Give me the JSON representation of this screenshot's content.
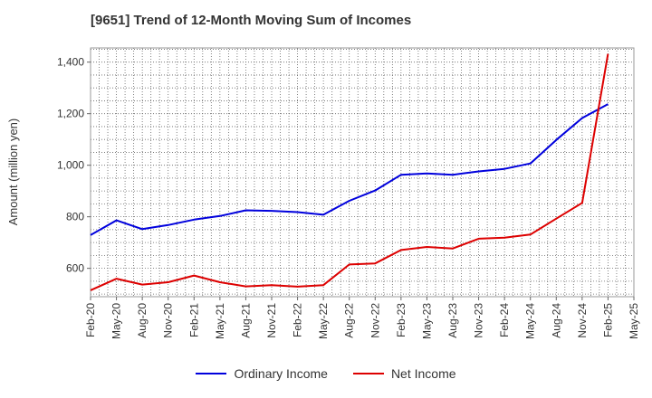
{
  "chart_data": {
    "type": "line",
    "title": "[9651]  Trend of 12-Month Moving Sum of Incomes",
    "xlabel": "",
    "ylabel": "Amount (million yen)",
    "ylim": [
      490,
      1455
    ],
    "yticks": [
      600,
      800,
      1000,
      1200,
      1400
    ],
    "ytick_labels": [
      "600",
      "800",
      "1,000",
      "1,200",
      "1,400"
    ],
    "categories": [
      "Feb-20",
      "May-20",
      "Aug-20",
      "Nov-20",
      "Feb-21",
      "May-21",
      "Aug-21",
      "Nov-21",
      "Feb-22",
      "May-22",
      "Aug-22",
      "Nov-22",
      "Feb-23",
      "May-23",
      "Aug-23",
      "Nov-23",
      "Feb-24",
      "May-24",
      "Aug-24",
      "Nov-24",
      "Feb-25",
      "May-25"
    ],
    "grid": true,
    "legend_position": "bottom",
    "series": [
      {
        "name": "Ordinary Income",
        "color": "#0000dd",
        "values": [
          729,
          786,
          752,
          768,
          789,
          803,
          825,
          823,
          818,
          808,
          862,
          902,
          963,
          968,
          963,
          976,
          986,
          1007,
          1098,
          1183,
          1237,
          null
        ]
      },
      {
        "name": "Net Income",
        "color": "#dd0000",
        "values": [
          515,
          560,
          537,
          546,
          572,
          546,
          530,
          535,
          529,
          535,
          615,
          619,
          671,
          683,
          677,
          715,
          719,
          731,
          793,
          854,
          1432,
          null
        ]
      }
    ]
  }
}
